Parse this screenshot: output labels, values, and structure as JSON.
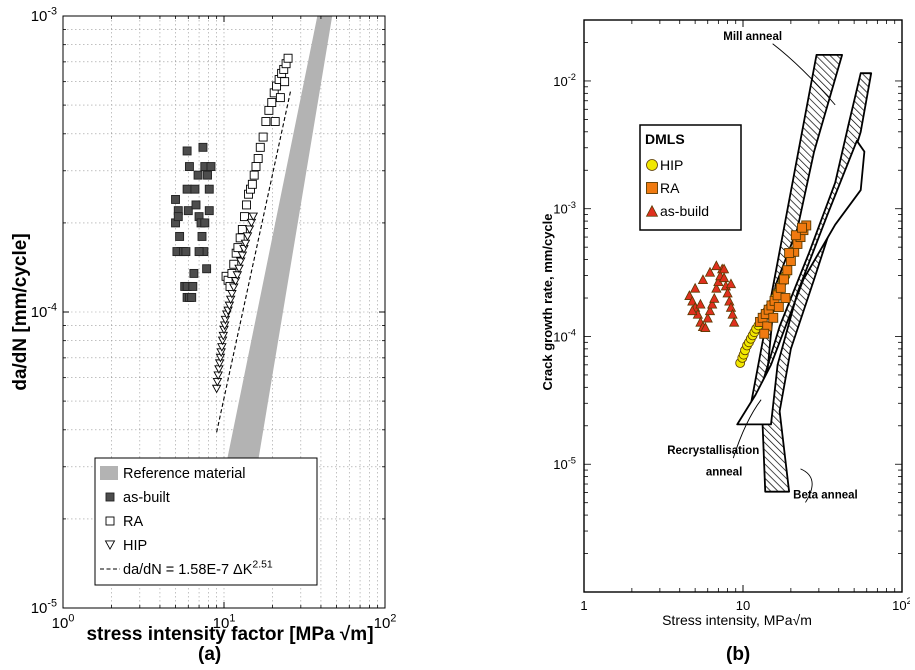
{
  "panels": {
    "a_label": "(a)",
    "b_label": "(b)"
  },
  "chart_data": [
    {
      "panel": "(a)",
      "type": "scatter",
      "x_scale": "log",
      "y_scale": "log",
      "xlim": [
        1,
        100
      ],
      "ylim": [
        1e-05,
        0.001
      ],
      "xlabel": "stress intensity factor [MPa  √m]",
      "ylabel": "da/dN [mm/cycle]",
      "x_ticks": [
        {
          "v": 1,
          "base": "10",
          "exp": "0"
        },
        {
          "v": 10,
          "base": "10",
          "exp": "1"
        },
        {
          "v": 100,
          "base": "10",
          "exp": "2"
        }
      ],
      "y_ticks": [
        {
          "v": 1e-05,
          "base": "10",
          "exp": "-5"
        },
        {
          "v": 0.0001,
          "base": "10",
          "exp": "-4"
        },
        {
          "v": 0.001,
          "base": "10",
          "exp": "-3"
        }
      ],
      "grid": true,
      "legend_position": "bottom-center",
      "legend": [
        {
          "key": "ref",
          "label": "Reference material",
          "base": "",
          "exp": ""
        },
        {
          "key": "asbuilt",
          "label": "as-built",
          "base": "",
          "exp": ""
        },
        {
          "key": "ra",
          "label": "RA",
          "base": "",
          "exp": ""
        },
        {
          "key": "hip",
          "label": "HIP",
          "base": "",
          "exp": ""
        },
        {
          "key": "fit",
          "label": "",
          "base": "da/dN = 1.58E-7 ΔK",
          "exp": "2.51"
        }
      ],
      "band": {
        "color": "#b3b3b3",
        "lower": [
          [
            8.8,
            2e-05
          ],
          [
            38,
            0.001
          ]
        ],
        "upper": [
          [
            14.2,
            2e-05
          ],
          [
            47,
            0.001
          ]
        ]
      },
      "fit": {
        "C": 1.58e-07,
        "m": 2.51,
        "x_range": [
          9.0,
          26.0
        ]
      },
      "series": [
        {
          "name": "as-built",
          "marker": "filled-square",
          "color": "#4d4d4d",
          "points": [
            [
              5.0,
              0.00024
            ],
            [
              5.2,
              0.00022
            ],
            [
              5.0,
              0.0002
            ],
            [
              5.3,
              0.00018
            ],
            [
              5.4,
              0.00016
            ],
            [
              5.1,
              0.00016
            ],
            [
              5.6,
              0.00016
            ],
            [
              5.2,
              0.00021
            ],
            [
              5.9,
              0.00035
            ],
            [
              6.1,
              0.00031
            ],
            [
              5.9,
              0.00026
            ],
            [
              6.0,
              0.00022
            ],
            [
              5.8,
              0.00016
            ],
            [
              5.7,
              0.000122
            ],
            [
              5.9,
              0.000122
            ],
            [
              5.9,
              0.000112
            ],
            [
              6.1,
              0.000112
            ],
            [
              6.3,
              0.000112
            ],
            [
              6.4,
              0.000122
            ],
            [
              6.5,
              0.000135
            ],
            [
              6.9,
              0.00029
            ],
            [
              6.6,
              0.00026
            ],
            [
              7.0,
              0.00021
            ],
            [
              6.7,
              0.00023
            ],
            [
              7.2,
              0.0002
            ],
            [
              7.3,
              0.00018
            ],
            [
              7.5,
              0.00016
            ],
            [
              7.8,
              0.00014
            ],
            [
              7.4,
              0.00036
            ],
            [
              7.6,
              0.00031
            ],
            [
              7.9,
              0.00029
            ],
            [
              8.1,
              0.00026
            ],
            [
              8.3,
              0.00031
            ],
            [
              7.6,
              0.0002
            ],
            [
              8.1,
              0.00022
            ],
            [
              7.0,
              0.00016
            ]
          ]
        },
        {
          "name": "RA",
          "marker": "open-square",
          "color": "#000000",
          "points": [
            [
              10.3,
              0.000132
            ],
            [
              10.6,
              0.000128
            ],
            [
              10.9,
              0.000122
            ],
            [
              11.2,
              0.000135
            ],
            [
              11.5,
              0.000145
            ],
            [
              11.9,
              0.000158
            ],
            [
              12.2,
              0.000165
            ],
            [
              12.6,
              0.000178
            ],
            [
              13.0,
              0.00019
            ],
            [
              13.4,
              0.00021
            ],
            [
              13.8,
              0.00023
            ],
            [
              14.2,
              0.00025
            ],
            [
              14.6,
              0.00026
            ],
            [
              15.0,
              0.00027
            ],
            [
              15.4,
              0.00029
            ],
            [
              15.8,
              0.00031
            ],
            [
              16.3,
              0.00033
            ],
            [
              16.8,
              0.00036
            ],
            [
              17.5,
              0.00039
            ],
            [
              18.2,
              0.00044
            ],
            [
              19.0,
              0.00048
            ],
            [
              19.8,
              0.00051
            ],
            [
              20.5,
              0.00055
            ],
            [
              21.2,
              0.00058
            ],
            [
              22.0,
              0.00061
            ],
            [
              22.8,
              0.00064
            ],
            [
              23.5,
              0.00066
            ],
            [
              24.3,
              0.00069
            ],
            [
              25.0,
              0.00072
            ],
            [
              23.8,
              0.0006
            ],
            [
              22.4,
              0.00053
            ],
            [
              20.8,
              0.00044
            ]
          ]
        },
        {
          "name": "HIP",
          "marker": "open-triangle-down",
          "color": "#000000",
          "points": [
            [
              9.0,
              5.5e-05
            ],
            [
              9.1,
              5.8e-05
            ],
            [
              9.2,
              6.1e-05
            ],
            [
              9.3,
              6.4e-05
            ],
            [
              9.4,
              6.7e-05
            ],
            [
              9.5,
              7e-05
            ],
            [
              9.6,
              7.3e-05
            ],
            [
              9.7,
              7.6e-05
            ],
            [
              9.8,
              8e-05
            ],
            [
              9.9,
              8.3e-05
            ],
            [
              10.0,
              8.7e-05
            ],
            [
              10.1,
              9e-05
            ],
            [
              10.2,
              9.4e-05
            ],
            [
              10.4,
              9.8e-05
            ],
            [
              10.6,
              0.000101
            ],
            [
              10.8,
              0.000105
            ],
            [
              11.0,
              0.00011
            ],
            [
              11.2,
              0.000115
            ],
            [
              11.5,
              0.000121
            ],
            [
              11.8,
              0.000127
            ],
            [
              12.1,
              0.000133
            ],
            [
              12.4,
              0.00014
            ],
            [
              12.7,
              0.000148
            ],
            [
              13.0,
              0.000155
            ],
            [
              13.3,
              0.000163
            ],
            [
              13.6,
              0.00017
            ],
            [
              14.0,
              0.00018
            ],
            [
              14.4,
              0.00019
            ],
            [
              14.8,
              0.0002
            ],
            [
              15.2,
              0.00021
            ]
          ]
        }
      ]
    },
    {
      "panel": "(b)",
      "type": "scatter",
      "x_scale": "log",
      "y_scale": "log",
      "xlim": [
        1,
        100
      ],
      "ylim": [
        1e-06,
        0.03
      ],
      "xlabel": "Stress intensity, MPa√m",
      "ylabel": "Crack growth rate, mm/cycle",
      "x_ticks": [
        {
          "v": 1,
          "base": "1",
          "exp": ""
        },
        {
          "v": 10,
          "base": "10",
          "exp": ""
        },
        {
          "v": 100,
          "base": "10",
          "exp": "2"
        }
      ],
      "y_ticks": [
        {
          "v": 1e-05,
          "base": "10",
          "exp": "-5"
        },
        {
          "v": 0.0001,
          "base": "10",
          "exp": "-4"
        },
        {
          "v": 0.001,
          "base": "10",
          "exp": "-3"
        },
        {
          "v": 0.01,
          "base": "10",
          "exp": "-2"
        }
      ],
      "grid": false,
      "legend_title": "DMLS",
      "legend_position": "top-left",
      "legend": [
        {
          "key": "hip",
          "label": "HIP"
        },
        {
          "key": "ra",
          "label": "RA"
        },
        {
          "key": "asbuild",
          "label": "as-build"
        }
      ],
      "annotations": [
        {
          "text": "Mill anneal",
          "x": 11.5,
          "y": 0.021,
          "tx": 38,
          "ty": 0.0065
        },
        {
          "text": "Recrystallisation",
          "x": 6.5,
          "y": 1.2e-05,
          "tx": 13,
          "ty": 3.2e-05
        },
        {
          "text": "anneal",
          "x": 7.6,
          "y": 8.2e-06,
          "tx": 0,
          "ty": 0
        },
        {
          "text": "Beta anneal",
          "x": 33,
          "y": 5.4e-06,
          "tx": 23,
          "ty": 9.2e-06
        },
        {
          "text": "",
          "x": 0,
          "y": 0,
          "tx": 0,
          "ty": 0
        }
      ],
      "series": [
        {
          "name": "HIP",
          "marker": "circle",
          "color": "#f2e800",
          "points": [
            [
              9.6,
              6.2e-05
            ],
            [
              9.9,
              6.8e-05
            ],
            [
              10.1,
              7.2e-05
            ],
            [
              10.3,
              7.8e-05
            ],
            [
              10.6,
              8.5e-05
            ],
            [
              10.9,
              9e-05
            ],
            [
              11.2,
              9.6e-05
            ],
            [
              11.5,
              0.000102
            ],
            [
              11.8,
              0.000108
            ],
            [
              12.1,
              0.000115
            ],
            [
              12.5,
              0.000122
            ],
            [
              12.9,
              0.00013
            ],
            [
              13.3,
              0.000138
            ],
            [
              13.8,
              0.00015
            ],
            [
              14.3,
              0.00016
            ],
            [
              14.8,
              0.00017
            ],
            [
              15.3,
              0.00018
            ],
            [
              15.9,
              0.0002
            ],
            [
              16.5,
              0.00022
            ],
            [
              17.1,
              0.00024
            ],
            [
              17.8,
              0.00027
            ],
            [
              18.5,
              0.0003
            ]
          ]
        },
        {
          "name": "RA",
          "marker": "square",
          "color": "#f07a10",
          "points": [
            [
              12.8,
              0.00013
            ],
            [
              13.3,
              0.00014
            ],
            [
              13.9,
              0.00015
            ],
            [
              14.5,
              0.000162
            ],
            [
              15.1,
              0.000175
            ],
            [
              15.8,
              0.00019
            ],
            [
              16.5,
              0.00021
            ],
            [
              17.3,
              0.00024
            ],
            [
              18.1,
              0.00028
            ],
            [
              19.0,
              0.00033
            ],
            [
              20.0,
              0.00039
            ],
            [
              21.0,
              0.00046
            ],
            [
              22.0,
              0.00053
            ],
            [
              23.0,
              0.0006
            ],
            [
              24.0,
              0.00068
            ],
            [
              25.0,
              0.00074
            ],
            [
              14.2,
              0.00012
            ],
            [
              15.5,
              0.00014
            ],
            [
              16.8,
              0.00017
            ],
            [
              18.5,
              0.0002
            ],
            [
              13.6,
              0.000105
            ],
            [
              19.5,
              0.00045
            ],
            [
              21.5,
              0.00062
            ],
            [
              23.5,
              0.00071
            ]
          ]
        },
        {
          "name": "as-build",
          "marker": "triangle",
          "color": "#e0301e",
          "points": [
            [
              4.6,
              0.00021
            ],
            [
              4.8,
              0.00019
            ],
            [
              5.0,
              0.00017
            ],
            [
              5.2,
              0.00015
            ],
            [
              5.4,
              0.00013
            ],
            [
              5.6,
              0.00012
            ],
            [
              5.8,
              0.000118
            ],
            [
              6.0,
              0.00014
            ],
            [
              6.2,
              0.00016
            ],
            [
              6.4,
              0.00018
            ],
            [
              6.6,
              0.0002
            ],
            [
              6.8,
              0.00024
            ],
            [
              7.0,
              0.00027
            ],
            [
              7.2,
              0.0003
            ],
            [
              7.4,
              0.00034
            ],
            [
              7.6,
              0.00029
            ],
            [
              7.8,
              0.00025
            ],
            [
              8.0,
              0.00022
            ],
            [
              8.2,
              0.00019
            ],
            [
              8.4,
              0.00017
            ],
            [
              8.6,
              0.00015
            ],
            [
              8.8,
              0.00013
            ],
            [
              5.0,
              0.00024
            ],
            [
              5.6,
              0.00028
            ],
            [
              6.2,
              0.00032
            ],
            [
              6.8,
              0.00036
            ],
            [
              7.6,
              0.00034
            ],
            [
              8.4,
              0.00026
            ],
            [
              4.8,
              0.00016
            ],
            [
              5.4,
              0.00018
            ]
          ]
        }
      ]
    }
  ]
}
